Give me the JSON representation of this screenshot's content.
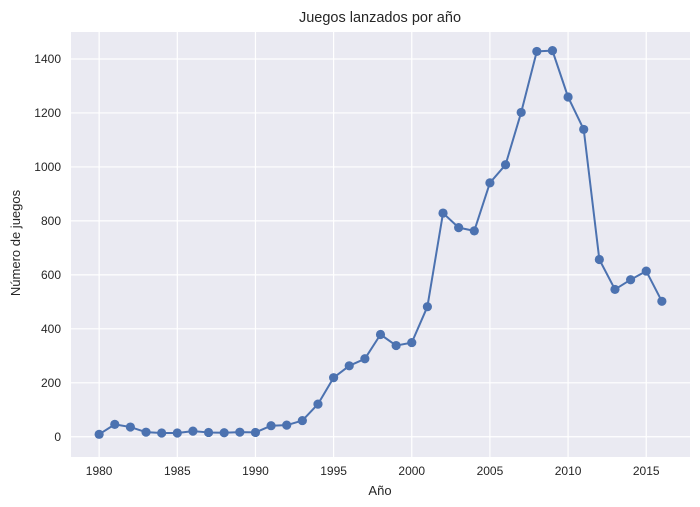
{
  "chart_data": {
    "type": "line",
    "title": "Juegos lanzados por año",
    "xlabel": "Año",
    "ylabel": "Número de juegos",
    "xlim": [
      1978.2,
      2017.8
    ],
    "ylim": [
      -75,
      1500
    ],
    "x_ticks": [
      1980,
      1985,
      1990,
      1995,
      2000,
      2005,
      2010,
      2015
    ],
    "y_ticks": [
      0,
      200,
      400,
      600,
      800,
      1000,
      1200,
      1400
    ],
    "grid": true,
    "colors": {
      "line": "#4c72b0",
      "background": "#eaeaf2",
      "grid": "#ffffff"
    },
    "series": [
      {
        "x": [
          1980,
          1981,
          1982,
          1983,
          1984,
          1985,
          1986,
          1987,
          1988,
          1989,
          1990,
          1991,
          1992,
          1993,
          1994,
          1995,
          1996,
          1997,
          1998,
          1999,
          2000,
          2001,
          2002,
          2003,
          2004,
          2005,
          2006,
          2007,
          2008,
          2009,
          2010,
          2011,
          2012,
          2013,
          2014,
          2015,
          2016
        ],
        "values": [
          9,
          46,
          36,
          17,
          14,
          14,
          21,
          16,
          15,
          17,
          16,
          41,
          43,
          60,
          121,
          219,
          263,
          289,
          379,
          338,
          349,
          482,
          829,
          775,
          763,
          941,
          1008,
          1202,
          1428,
          1431,
          1259,
          1139,
          657,
          546,
          582,
          614,
          502
        ]
      }
    ]
  }
}
